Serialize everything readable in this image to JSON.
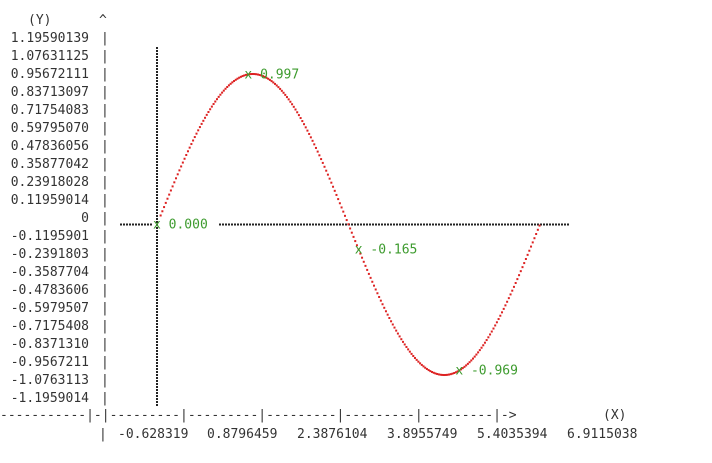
{
  "chart_data": {
    "type": "scatter",
    "ylabel": "(Y)",
    "xlabel": "(X)",
    "y_ticks": [
      "1.19590139",
      "1.07631125",
      "0.95672111",
      "0.83713097",
      "0.71754083",
      "0.59795070",
      "0.47836056",
      "0.35877042",
      "0.23918028",
      "0.11959014",
      "0",
      "-0.1195901",
      "-0.2391803",
      "-0.3587704",
      "-0.4783606",
      "-0.5979507",
      "-0.7175408",
      "-0.8371310",
      "-0.9567211",
      "-1.0763113",
      "-1.1959014"
    ],
    "x_ticks": [
      "-0.628319",
      "0.8796459",
      "2.3876104",
      "3.8955749",
      "5.4035394",
      "6.9115038"
    ],
    "xlim": [
      -0.9,
      6.9115038
    ],
    "ylim": [
      -1.1959014,
      1.19590139
    ],
    "series": [
      {
        "color": "#dd2222",
        "style": "dotted",
        "function": "sin",
        "x_range": [
          0.06,
          6.28
        ]
      }
    ],
    "zero_line": {
      "style": "dotted",
      "color": "#222222"
    },
    "y_axis_line": {
      "x": 0,
      "style": "dotted",
      "color": "#222222"
    },
    "annotations": [
      {
        "x": 0.0,
        "y": 0.0,
        "label": "x 0.000"
      },
      {
        "x": 1.5,
        "y": 0.997,
        "label": "x 0.997"
      },
      {
        "x": 3.31,
        "y": -0.165,
        "label": "x -0.165"
      },
      {
        "x": 4.96,
        "y": -0.969,
        "label": "x -0.969"
      }
    ],
    "colors": {
      "axis": "#333333",
      "annotation": "#3d9b2e",
      "series": "#dd2222"
    }
  }
}
